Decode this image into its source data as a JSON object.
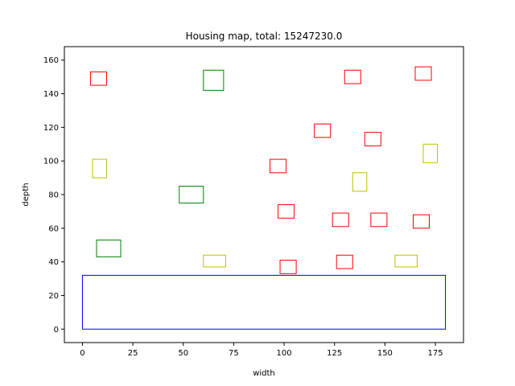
{
  "chart_data": {
    "type": "rectangles",
    "title": "Housing map, total: 15247230.0",
    "xlabel": "width",
    "ylabel": "depth",
    "xlim": [
      -8.95,
      188.95
    ],
    "ylim": [
      -8.0,
      168.0
    ],
    "xticks": [
      0,
      25,
      50,
      75,
      100,
      125,
      150,
      175
    ],
    "yticks": [
      0,
      20,
      40,
      60,
      80,
      100,
      120,
      140,
      160
    ],
    "grid": false,
    "colors": {
      "red": "#ff0000",
      "green": "#008000",
      "yellow": "#bfbf00",
      "blue": "#0000ff"
    },
    "rects": [
      {
        "x": 0,
        "y": 0,
        "w": 180,
        "h": 32,
        "color": "blue"
      },
      {
        "x": 4,
        "y": 145,
        "w": 8,
        "h": 8,
        "color": "red"
      },
      {
        "x": 130,
        "y": 146,
        "w": 8,
        "h": 8,
        "color": "red"
      },
      {
        "x": 165,
        "y": 148,
        "w": 8,
        "h": 8,
        "color": "red"
      },
      {
        "x": 115,
        "y": 114,
        "w": 8,
        "h": 8,
        "color": "red"
      },
      {
        "x": 140,
        "y": 109,
        "w": 8,
        "h": 8,
        "color": "red"
      },
      {
        "x": 93,
        "y": 93,
        "w": 8,
        "h": 8,
        "color": "red"
      },
      {
        "x": 97,
        "y": 66,
        "w": 8,
        "h": 8,
        "color": "red"
      },
      {
        "x": 124,
        "y": 61,
        "w": 8,
        "h": 8,
        "color": "red"
      },
      {
        "x": 143,
        "y": 61,
        "w": 8,
        "h": 8,
        "color": "red"
      },
      {
        "x": 164,
        "y": 60,
        "w": 8,
        "h": 8,
        "color": "red"
      },
      {
        "x": 98,
        "y": 33,
        "w": 8,
        "h": 8,
        "color": "red"
      },
      {
        "x": 126,
        "y": 36,
        "w": 8,
        "h": 8,
        "color": "red"
      },
      {
        "x": 60,
        "y": 142,
        "w": 10,
        "h": 12,
        "color": "green"
      },
      {
        "x": 48,
        "y": 75,
        "w": 12,
        "h": 10,
        "color": "green"
      },
      {
        "x": 7,
        "y": 43,
        "w": 12,
        "h": 10,
        "color": "green"
      },
      {
        "x": 5,
        "y": 90,
        "w": 7,
        "h": 11,
        "color": "yellow"
      },
      {
        "x": 134,
        "y": 82,
        "w": 7,
        "h": 11,
        "color": "yellow"
      },
      {
        "x": 169,
        "y": 99,
        "w": 7,
        "h": 11,
        "color": "yellow"
      },
      {
        "x": 60,
        "y": 37,
        "w": 11,
        "h": 7,
        "color": "yellow"
      },
      {
        "x": 155,
        "y": 37,
        "w": 11,
        "h": 7,
        "color": "yellow"
      }
    ]
  }
}
